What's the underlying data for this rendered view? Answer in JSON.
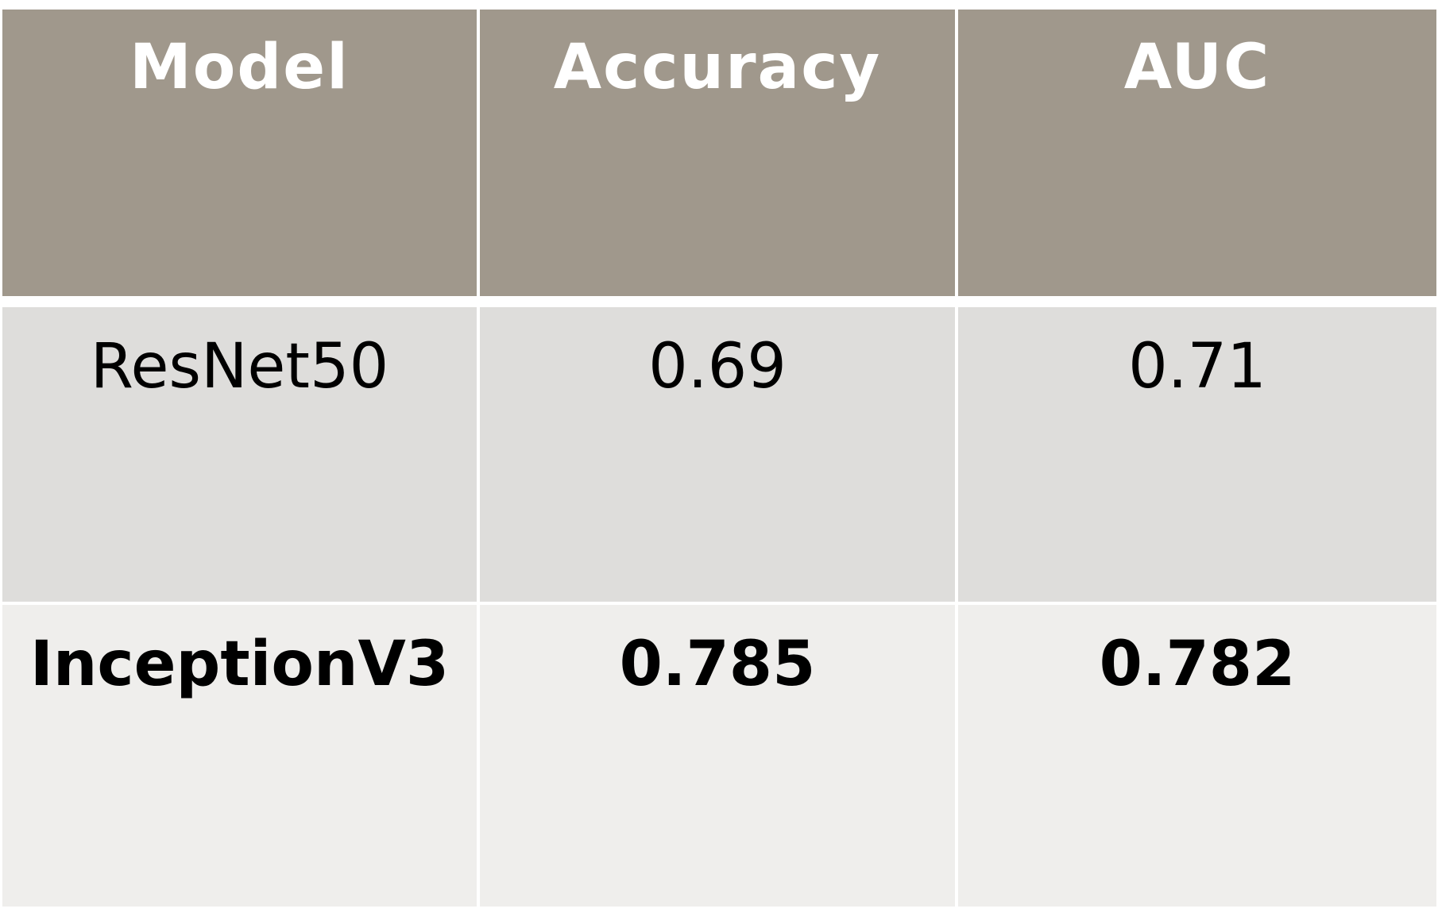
{
  "table": {
    "headers": [
      "Model",
      "Accuracy",
      "AUC"
    ],
    "rows": [
      {
        "model": "ResNet50",
        "accuracy": "0.69",
        "auc": "0.71",
        "bold": false
      },
      {
        "model": "InceptionV3",
        "accuracy": "0.785",
        "auc": "0.782",
        "bold": true
      }
    ]
  },
  "colors": {
    "header_bg": "#a0988c",
    "header_text": "#ffffff",
    "row_odd_bg": "#dedddb",
    "row_even_bg": "#efeeec",
    "body_text": "#000000"
  }
}
